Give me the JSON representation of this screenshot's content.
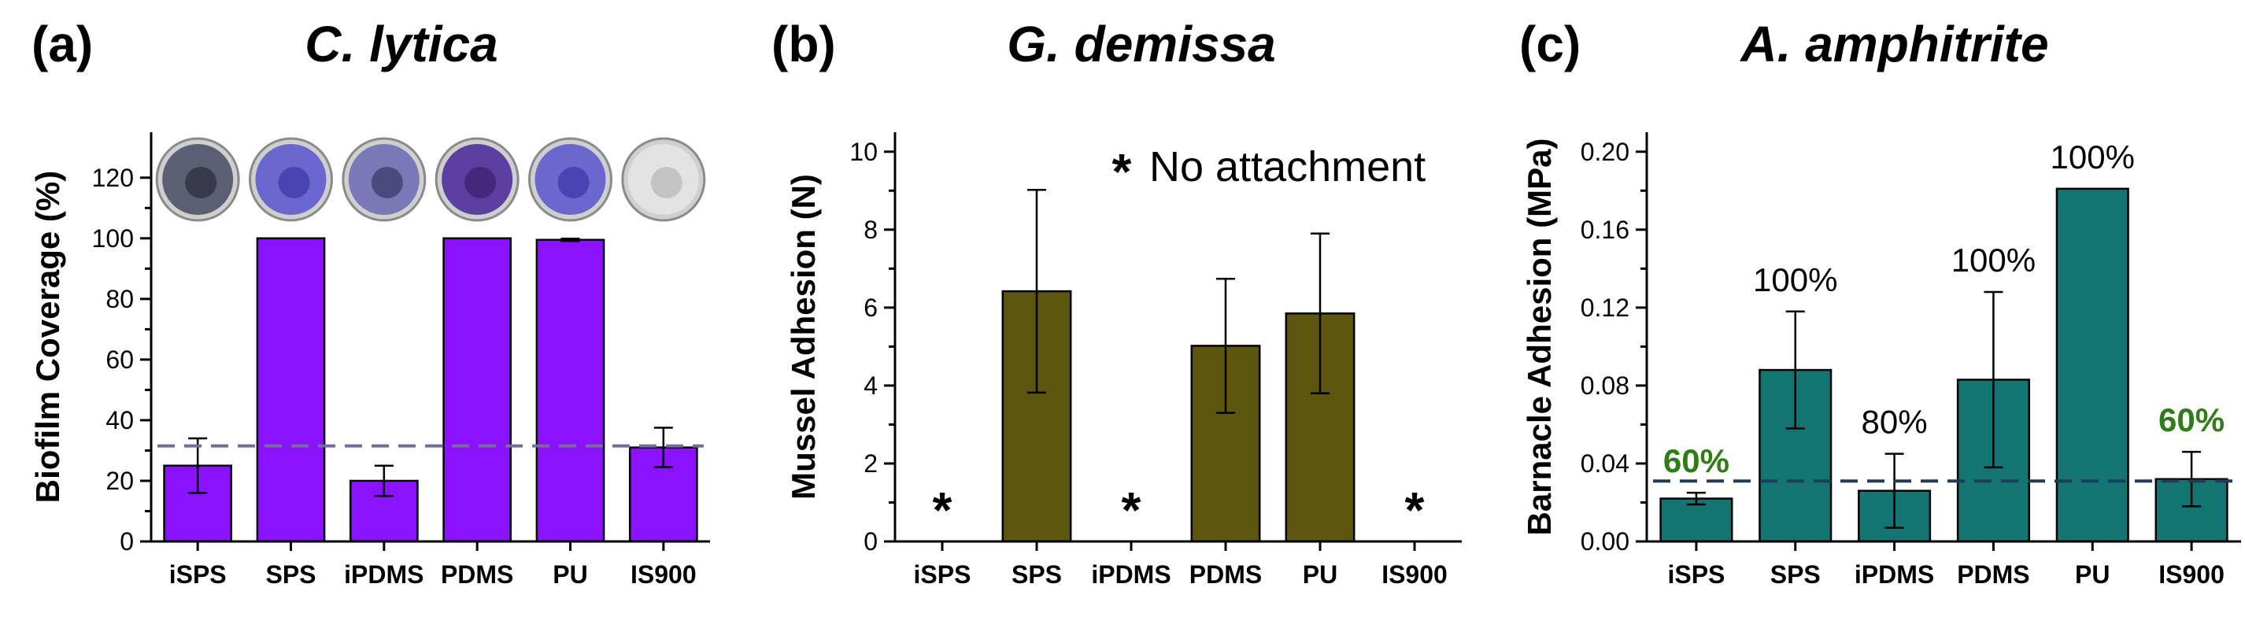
{
  "chart_data": [
    {
      "type": "bar",
      "panel_label": "(a)",
      "title": "C. lytica",
      "ylabel": "Biofilm Coverage (%)",
      "xlabel": "",
      "categories": [
        "iSPS",
        "SPS",
        "iPDMS",
        "PDMS",
        "PU",
        "IS900"
      ],
      "values": [
        25,
        100,
        20,
        100,
        99.5,
        31
      ],
      "error": [
        9,
        0,
        5,
        0,
        0.4,
        6.5
      ],
      "ylim": [
        0,
        135
      ],
      "yticks": [
        0,
        20,
        40,
        60,
        80,
        100,
        120
      ],
      "reference_line": 31.5,
      "bar_color": "#8b12ff",
      "ref_color": "#7a6a9a",
      "thumbnails": [
        "dish-dark",
        "dish-blue",
        "dish-dark-spotted",
        "dish-purple",
        "dish-blue",
        "dish-light"
      ]
    },
    {
      "type": "bar",
      "panel_label": "(b)",
      "title": "G. demissa",
      "ylabel": "Mussel Adhesion (N)",
      "xlabel": "",
      "categories": [
        "iSPS",
        "SPS",
        "iPDMS",
        "PDMS",
        "PU",
        "IS900"
      ],
      "values": [
        null,
        6.42,
        null,
        5.02,
        5.85,
        null
      ],
      "error": [
        null,
        2.6,
        null,
        1.72,
        2.05,
        null
      ],
      "no_attachment": [
        true,
        false,
        true,
        false,
        false,
        true
      ],
      "star_symbol": "*",
      "legend": "No attachment",
      "ylim": [
        0,
        10.5
      ],
      "yticks": [
        0,
        2,
        4,
        6,
        8,
        10
      ],
      "bar_color": "#5c560f"
    },
    {
      "type": "bar",
      "panel_label": "(c)",
      "title": "A. amphitrite",
      "ylabel": "Barnacle Adhesion (MPa)",
      "xlabel": "",
      "categories": [
        "iSPS",
        "SPS",
        "iPDMS",
        "PDMS",
        "PU",
        "IS900"
      ],
      "values": [
        0.022,
        0.088,
        0.026,
        0.083,
        0.181,
        0.032
      ],
      "error": [
        0.003,
        0.03,
        0.019,
        0.045,
        0,
        0.014
      ],
      "percent_labels": [
        "60%",
        "100%",
        "80%",
        "100%",
        "100%",
        "60%"
      ],
      "percent_highlight": [
        true,
        false,
        false,
        false,
        false,
        true
      ],
      "ylim": [
        0,
        0.21
      ],
      "yticks": [
        "0.00",
        "0.04",
        "0.08",
        "0.12",
        "0.16",
        "0.20"
      ],
      "reference_line": 0.031,
      "bar_color": "#137472",
      "ref_color": "#1f3b5a",
      "highlight_color": "#2e7d16"
    }
  ]
}
